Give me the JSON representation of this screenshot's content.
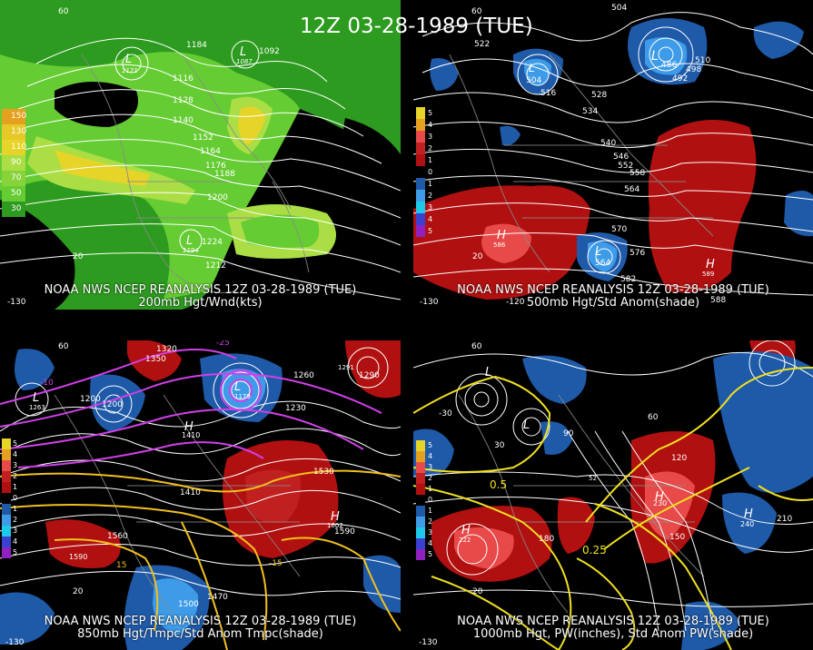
{
  "main_title": "12Z 03-28-1989 (TUE)",
  "panels": [
    {
      "id": "200mb",
      "caption_line1": "NOAA NWS NCEP REANALYSIS 12Z 03-28-1989 (TUE)",
      "caption_line2": "200mb Hgt/Wnd(kts)",
      "legend": [
        "150",
        "130",
        "110",
        "90",
        "70",
        "50",
        "30"
      ],
      "contour_labels": [
        "1184",
        "1092",
        "1116",
        "1128",
        "1140",
        "1152",
        "1164",
        "1176",
        "1188",
        "1200",
        "1212",
        "1224"
      ],
      "centers": [
        {
          "type": "L",
          "value": "1121"
        },
        {
          "type": "L",
          "value": "1087"
        },
        {
          "type": "L",
          "value": "1194"
        }
      ],
      "lat_labels": [
        "60",
        "20"
      ],
      "lon_labels": [
        "-130"
      ]
    },
    {
      "id": "500mb",
      "caption_line1": "NOAA NWS NCEP REANALYSIS 12Z 03-28-1989 (TUE)",
      "caption_line2": "500mb Hgt/Std Anom(shade)",
      "legend": [
        "5",
        "4",
        "3",
        "2",
        "1",
        "0",
        "1",
        "2",
        "3",
        "4",
        "5"
      ],
      "contour_labels": [
        "504",
        "516",
        "522",
        "528",
        "534",
        "540",
        "546",
        "552",
        "558",
        "564",
        "570",
        "576",
        "582",
        "588",
        "498",
        "492",
        "510"
      ],
      "centers": [
        {
          "type": "L",
          "value": "486"
        },
        {
          "type": "L",
          "value": "504"
        },
        {
          "type": "L",
          "value": "516"
        },
        {
          "type": "L",
          "value": "564"
        },
        {
          "type": "H",
          "value": "586"
        },
        {
          "type": "H",
          "value": "589"
        }
      ],
      "lat_labels": [
        "60",
        "20"
      ],
      "lon_labels": [
        "-130",
        "-120"
      ]
    },
    {
      "id": "850mb",
      "caption_line1": "NOAA NWS NCEP REANALYSIS 12Z 03-28-1989 (TUE)",
      "caption_line2": "850mb Hgt/Tmpc/Std Anom Tmpc(shade)",
      "legend": [
        "5",
        "4",
        "3",
        "2",
        "1",
        "0",
        "1",
        "2",
        "3",
        "4",
        "5"
      ],
      "contour_labels": [
        "1320",
        "1350",
        "1260",
        "1200",
        "1230",
        "1290",
        "1410",
        "1530",
        "1560",
        "1590",
        "1500",
        "1470",
        "-25",
        "-15",
        "-10",
        "15"
      ],
      "centers": [
        {
          "type": "L",
          "value": "1179"
        },
        {
          "type": "L",
          "value": "1263"
        },
        {
          "type": "L",
          "value": "1200"
        },
        {
          "type": "H",
          "value": "1410"
        },
        {
          "type": "H",
          "value": "1602"
        },
        {
          "type": "H",
          "value": "1590"
        },
        {
          "type": "H",
          "value": "1291"
        }
      ],
      "lat_labels": [
        "60",
        "20"
      ],
      "lon_labels": [
        "-130"
      ]
    },
    {
      "id": "1000mb",
      "caption_line1": "NOAA NWS NCEP REANALYSIS 12Z 03-28-1989 (TUE)",
      "caption_line2": "1000mb Hgt, PW(inches), Std Anom PW(shade)",
      "legend": [
        "5",
        "4",
        "3",
        "2",
        "1",
        "0",
        "1",
        "2",
        "3",
        "4",
        "5"
      ],
      "contour_labels": [
        "30",
        "60",
        "90",
        "120",
        "150",
        "180",
        "210",
        "240",
        "0.25",
        "0.5",
        "-30"
      ],
      "centers": [
        {
          "type": "L",
          "value": "-30"
        },
        {
          "type": "H",
          "value": "222"
        },
        {
          "type": "H",
          "value": "240"
        },
        {
          "type": "L",
          "value": "-30"
        },
        {
          "type": "L",
          "value": "52"
        },
        {
          "type": "H",
          "value": "230"
        }
      ],
      "lat_labels": [
        "60",
        "20"
      ],
      "lon_labels": [
        "-130"
      ]
    }
  ],
  "colors": {
    "wind_dark": "#2d9b1f",
    "wind_mid": "#66cc33",
    "wind_light": "#aade44",
    "wind_yellow": "#e6d428",
    "wind_orange": "#e6a020",
    "anom_red": "#b01010",
    "anom_red_light": "#e84a4a",
    "anom_blue": "#1e5aa8",
    "anom_blue_light": "#3d9be8",
    "temp_magenta": "#d040e8",
    "pw_yellow": "#f0e020",
    "contour_white": "#ffffff",
    "map_gray": "#8a8a8a"
  }
}
